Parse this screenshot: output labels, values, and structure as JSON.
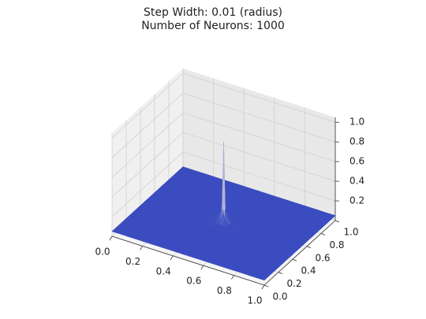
{
  "chart_data": {
    "type": "surface",
    "title": "Step Width: 0.01 (radius)",
    "subtitle": "Number of Neurons: 1000",
    "x": [
      0,
      0.1,
      0.2,
      0.3,
      0.4,
      0.46,
      0.49,
      0.5,
      0.51,
      0.54,
      0.6,
      0.7,
      0.8,
      0.9,
      1
    ],
    "y": [
      0,
      0.1,
      0.2,
      0.3,
      0.4,
      0.46,
      0.49,
      0.5,
      0.51,
      0.54,
      0.6,
      0.7,
      0.8,
      0.9,
      1
    ],
    "z": [
      [
        0.05,
        0.05,
        0.05,
        0.05,
        0.05,
        0.05,
        0.05,
        0.05,
        0.05,
        0.05,
        0.05,
        0.05,
        0.05,
        0.05,
        0.05
      ],
      [
        0.05,
        0.05,
        0.05,
        0.05,
        0.05,
        0.05,
        0.05,
        0.05,
        0.05,
        0.05,
        0.05,
        0.05,
        0.05,
        0.05,
        0.05
      ],
      [
        0.05,
        0.05,
        0.05,
        0.05,
        0.05,
        0.05,
        0.05,
        0.05,
        0.05,
        0.05,
        0.05,
        0.05,
        0.05,
        0.05,
        0.05
      ],
      [
        0.05,
        0.05,
        0.05,
        0.05,
        0.05,
        0.05,
        0.05,
        0.05,
        0.05,
        0.05,
        0.05,
        0.05,
        0.05,
        0.05,
        0.05
      ],
      [
        0.05,
        0.05,
        0.05,
        0.05,
        0.05,
        0.05,
        0.05,
        0.05,
        0.05,
        0.05,
        0.05,
        0.05,
        0.05,
        0.05,
        0.05
      ],
      [
        0.05,
        0.05,
        0.05,
        0.05,
        0.05,
        0.06,
        0.06,
        0.06,
        0.06,
        0.06,
        0.05,
        0.05,
        0.05,
        0.05,
        0.05
      ],
      [
        0.05,
        0.05,
        0.05,
        0.05,
        0.05,
        0.06,
        0.1,
        0.2,
        0.1,
        0.06,
        0.05,
        0.05,
        0.05,
        0.05,
        0.05
      ],
      [
        0.05,
        0.05,
        0.05,
        0.05,
        0.05,
        0.06,
        0.2,
        0.88,
        0.2,
        0.06,
        0.05,
        0.05,
        0.05,
        0.05,
        0.05
      ],
      [
        0.05,
        0.05,
        0.05,
        0.05,
        0.05,
        0.06,
        0.1,
        0.2,
        0.1,
        0.06,
        0.05,
        0.05,
        0.05,
        0.05,
        0.05
      ],
      [
        0.05,
        0.05,
        0.05,
        0.05,
        0.05,
        0.06,
        0.06,
        0.06,
        0.06,
        0.06,
        0.05,
        0.05,
        0.05,
        0.05,
        0.05
      ],
      [
        0.05,
        0.05,
        0.05,
        0.05,
        0.05,
        0.05,
        0.05,
        0.05,
        0.05,
        0.05,
        0.05,
        0.05,
        0.05,
        0.05,
        0.05
      ],
      [
        0.05,
        0.05,
        0.05,
        0.05,
        0.05,
        0.05,
        0.05,
        0.05,
        0.05,
        0.05,
        0.05,
        0.05,
        0.05,
        0.05,
        0.05
      ],
      [
        0.05,
        0.05,
        0.05,
        0.05,
        0.05,
        0.05,
        0.05,
        0.05,
        0.05,
        0.05,
        0.05,
        0.05,
        0.05,
        0.05,
        0.05
      ],
      [
        0.05,
        0.05,
        0.05,
        0.05,
        0.05,
        0.05,
        0.05,
        0.05,
        0.05,
        0.05,
        0.05,
        0.05,
        0.05,
        0.05,
        0.05
      ],
      [
        0.05,
        0.05,
        0.05,
        0.05,
        0.05,
        0.05,
        0.05,
        0.05,
        0.05,
        0.05,
        0.05,
        0.05,
        0.05,
        0.05,
        0.05
      ]
    ],
    "xlim": [
      0,
      1
    ],
    "ylim": [
      0,
      1
    ],
    "zlim": [
      0,
      1.05
    ],
    "xticks": [
      {
        "value": 0,
        "label": "0.0"
      },
      0.2,
      0.4,
      0.6,
      0.8,
      {
        "value": 1,
        "label": "1.0"
      }
    ],
    "yticks": [
      {
        "value": 0,
        "label": "0.0"
      },
      0.2,
      0.4,
      0.6,
      0.8,
      {
        "value": 1,
        "label": "1.0"
      }
    ],
    "zticks": [
      0.2,
      0.4,
      0.6,
      0.8,
      {
        "value": 1,
        "label": "1.0"
      }
    ],
    "colormap": "coolwarm",
    "grid": true
  }
}
